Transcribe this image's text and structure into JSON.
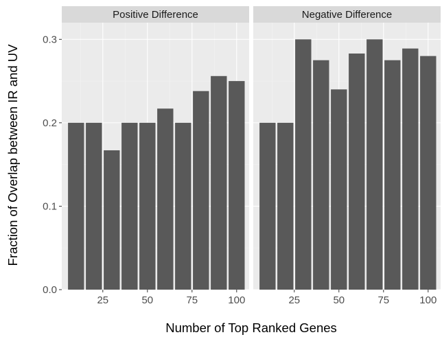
{
  "chart_data": {
    "type": "bar",
    "xlabel": "Number of Top Ranked Genes",
    "ylabel": "Fraction of Overlap between IR and UV",
    "ylim": [
      0,
      0.32
    ],
    "xlim": [
      2,
      107
    ],
    "yticks": [
      0.0,
      0.1,
      0.2,
      0.3
    ],
    "ytick_labels": [
      "0.0",
      "0.1",
      "0.2",
      "0.3"
    ],
    "xticks": [
      25,
      50,
      75,
      100
    ],
    "xtick_labels": [
      "25",
      "50",
      "75",
      "100"
    ],
    "grid": true,
    "facets": [
      {
        "label": "Positive Difference",
        "x": [
          10,
          20,
          30,
          40,
          50,
          60,
          70,
          80,
          90,
          100
        ],
        "values": [
          0.2,
          0.2,
          0.167,
          0.2,
          0.2,
          0.217,
          0.2,
          0.238,
          0.256,
          0.25
        ]
      },
      {
        "label": "Negative Difference",
        "x": [
          10,
          20,
          30,
          40,
          50,
          60,
          70,
          80,
          90,
          100
        ],
        "values": [
          0.2,
          0.2,
          0.3,
          0.275,
          0.24,
          0.283,
          0.3,
          0.275,
          0.289,
          0.28
        ]
      }
    ],
    "colors": {
      "bar": "#595959",
      "panel": "#ebebeb",
      "strip": "#d9d9d9",
      "grid_major": "#ffffff",
      "grid_minor": "#f2f2f2"
    }
  }
}
